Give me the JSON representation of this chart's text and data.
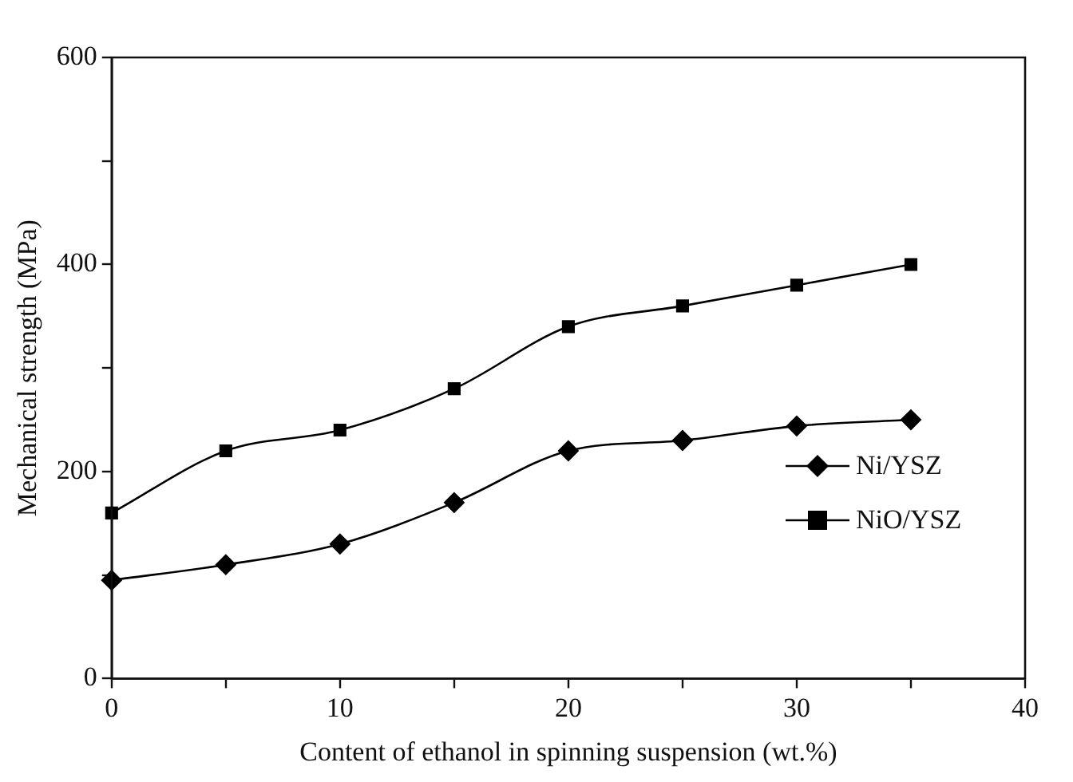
{
  "chart_data": {
    "type": "line",
    "xlabel": "Content of ethanol in spinning suspension (wt.%)",
    "ylabel": "Mechanical strength (MPa)",
    "x": [
      0,
      5,
      10,
      15,
      20,
      25,
      30,
      35
    ],
    "xlim": [
      0,
      40
    ],
    "xticks": [
      0,
      {
        "value": 5,
        "label": null
      },
      10,
      {
        "value": 15,
        "label": null
      },
      20,
      {
        "value": 25,
        "label": null
      },
      30,
      {
        "value": 35,
        "label": null
      },
      40
    ],
    "ylim": [
      0,
      600
    ],
    "yticks": [
      0,
      {
        "value": 100,
        "label": null
      },
      200,
      {
        "value": 300,
        "label": null
      },
      400,
      {
        "value": 500,
        "label": null
      },
      600
    ],
    "grid": false,
    "legend": "right",
    "series": [
      {
        "name": "Ni/YSZ",
        "color": "#000000",
        "marker": "diamond",
        "values": [
          95,
          110,
          130,
          170,
          220,
          230,
          244,
          250
        ]
      },
      {
        "name": "NiO/YSZ",
        "color": "#000000",
        "marker": "square",
        "values": [
          160,
          220,
          240,
          280,
          340,
          360,
          380,
          400
        ]
      }
    ]
  }
}
